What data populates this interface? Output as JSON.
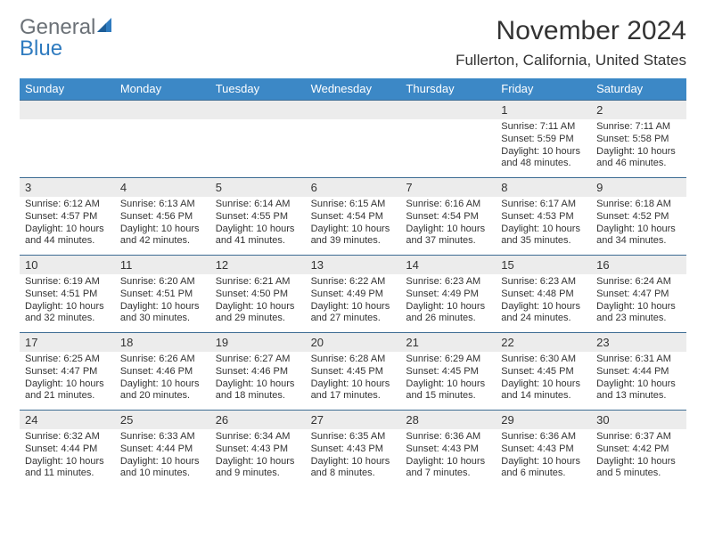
{
  "logo": {
    "general": "General",
    "blue": "Blue"
  },
  "header": {
    "month_title": "November 2024",
    "location": "Fullerton, California, United States"
  },
  "colors": {
    "header_bar": "#3c88c6",
    "week_divider": "#3d6c93",
    "daynum_band": "#ececec",
    "text": "#333333",
    "logo_gray": "#6b7177",
    "logo_blue": "#2f7bbf",
    "background": "#ffffff"
  },
  "typography": {
    "month_title_size_pt": 22,
    "location_size_pt": 13,
    "dow_size_pt": 10,
    "daynum_size_pt": 10,
    "detail_size_pt": 8.5
  },
  "calendar": {
    "type": "table",
    "day_names": [
      "Sunday",
      "Monday",
      "Tuesday",
      "Wednesday",
      "Thursday",
      "Friday",
      "Saturday"
    ],
    "weeks": [
      {
        "nums": [
          "",
          "",
          "",
          "",
          "",
          "1",
          "2"
        ],
        "details": [
          [],
          [],
          [],
          [],
          [],
          [
            "Sunrise: 7:11 AM",
            "Sunset: 5:59 PM",
            "Daylight: 10 hours and 48 minutes."
          ],
          [
            "Sunrise: 7:11 AM",
            "Sunset: 5:58 PM",
            "Daylight: 10 hours and 46 minutes."
          ]
        ]
      },
      {
        "nums": [
          "3",
          "4",
          "5",
          "6",
          "7",
          "8",
          "9"
        ],
        "details": [
          [
            "Sunrise: 6:12 AM",
            "Sunset: 4:57 PM",
            "Daylight: 10 hours and 44 minutes."
          ],
          [
            "Sunrise: 6:13 AM",
            "Sunset: 4:56 PM",
            "Daylight: 10 hours and 42 minutes."
          ],
          [
            "Sunrise: 6:14 AM",
            "Sunset: 4:55 PM",
            "Daylight: 10 hours and 41 minutes."
          ],
          [
            "Sunrise: 6:15 AM",
            "Sunset: 4:54 PM",
            "Daylight: 10 hours and 39 minutes."
          ],
          [
            "Sunrise: 6:16 AM",
            "Sunset: 4:54 PM",
            "Daylight: 10 hours and 37 minutes."
          ],
          [
            "Sunrise: 6:17 AM",
            "Sunset: 4:53 PM",
            "Daylight: 10 hours and 35 minutes."
          ],
          [
            "Sunrise: 6:18 AM",
            "Sunset: 4:52 PM",
            "Daylight: 10 hours and 34 minutes."
          ]
        ]
      },
      {
        "nums": [
          "10",
          "11",
          "12",
          "13",
          "14",
          "15",
          "16"
        ],
        "details": [
          [
            "Sunrise: 6:19 AM",
            "Sunset: 4:51 PM",
            "Daylight: 10 hours and 32 minutes."
          ],
          [
            "Sunrise: 6:20 AM",
            "Sunset: 4:51 PM",
            "Daylight: 10 hours and 30 minutes."
          ],
          [
            "Sunrise: 6:21 AM",
            "Sunset: 4:50 PM",
            "Daylight: 10 hours and 29 minutes."
          ],
          [
            "Sunrise: 6:22 AM",
            "Sunset: 4:49 PM",
            "Daylight: 10 hours and 27 minutes."
          ],
          [
            "Sunrise: 6:23 AM",
            "Sunset: 4:49 PM",
            "Daylight: 10 hours and 26 minutes."
          ],
          [
            "Sunrise: 6:23 AM",
            "Sunset: 4:48 PM",
            "Daylight: 10 hours and 24 minutes."
          ],
          [
            "Sunrise: 6:24 AM",
            "Sunset: 4:47 PM",
            "Daylight: 10 hours and 23 minutes."
          ]
        ]
      },
      {
        "nums": [
          "17",
          "18",
          "19",
          "20",
          "21",
          "22",
          "23"
        ],
        "details": [
          [
            "Sunrise: 6:25 AM",
            "Sunset: 4:47 PM",
            "Daylight: 10 hours and 21 minutes."
          ],
          [
            "Sunrise: 6:26 AM",
            "Sunset: 4:46 PM",
            "Daylight: 10 hours and 20 minutes."
          ],
          [
            "Sunrise: 6:27 AM",
            "Sunset: 4:46 PM",
            "Daylight: 10 hours and 18 minutes."
          ],
          [
            "Sunrise: 6:28 AM",
            "Sunset: 4:45 PM",
            "Daylight: 10 hours and 17 minutes."
          ],
          [
            "Sunrise: 6:29 AM",
            "Sunset: 4:45 PM",
            "Daylight: 10 hours and 15 minutes."
          ],
          [
            "Sunrise: 6:30 AM",
            "Sunset: 4:45 PM",
            "Daylight: 10 hours and 14 minutes."
          ],
          [
            "Sunrise: 6:31 AM",
            "Sunset: 4:44 PM",
            "Daylight: 10 hours and 13 minutes."
          ]
        ]
      },
      {
        "nums": [
          "24",
          "25",
          "26",
          "27",
          "28",
          "29",
          "30"
        ],
        "details": [
          [
            "Sunrise: 6:32 AM",
            "Sunset: 4:44 PM",
            "Daylight: 10 hours and 11 minutes."
          ],
          [
            "Sunrise: 6:33 AM",
            "Sunset: 4:44 PM",
            "Daylight: 10 hours and 10 minutes."
          ],
          [
            "Sunrise: 6:34 AM",
            "Sunset: 4:43 PM",
            "Daylight: 10 hours and 9 minutes."
          ],
          [
            "Sunrise: 6:35 AM",
            "Sunset: 4:43 PM",
            "Daylight: 10 hours and 8 minutes."
          ],
          [
            "Sunrise: 6:36 AM",
            "Sunset: 4:43 PM",
            "Daylight: 10 hours and 7 minutes."
          ],
          [
            "Sunrise: 6:36 AM",
            "Sunset: 4:43 PM",
            "Daylight: 10 hours and 6 minutes."
          ],
          [
            "Sunrise: 6:37 AM",
            "Sunset: 4:42 PM",
            "Daylight: 10 hours and 5 minutes."
          ]
        ]
      }
    ]
  }
}
